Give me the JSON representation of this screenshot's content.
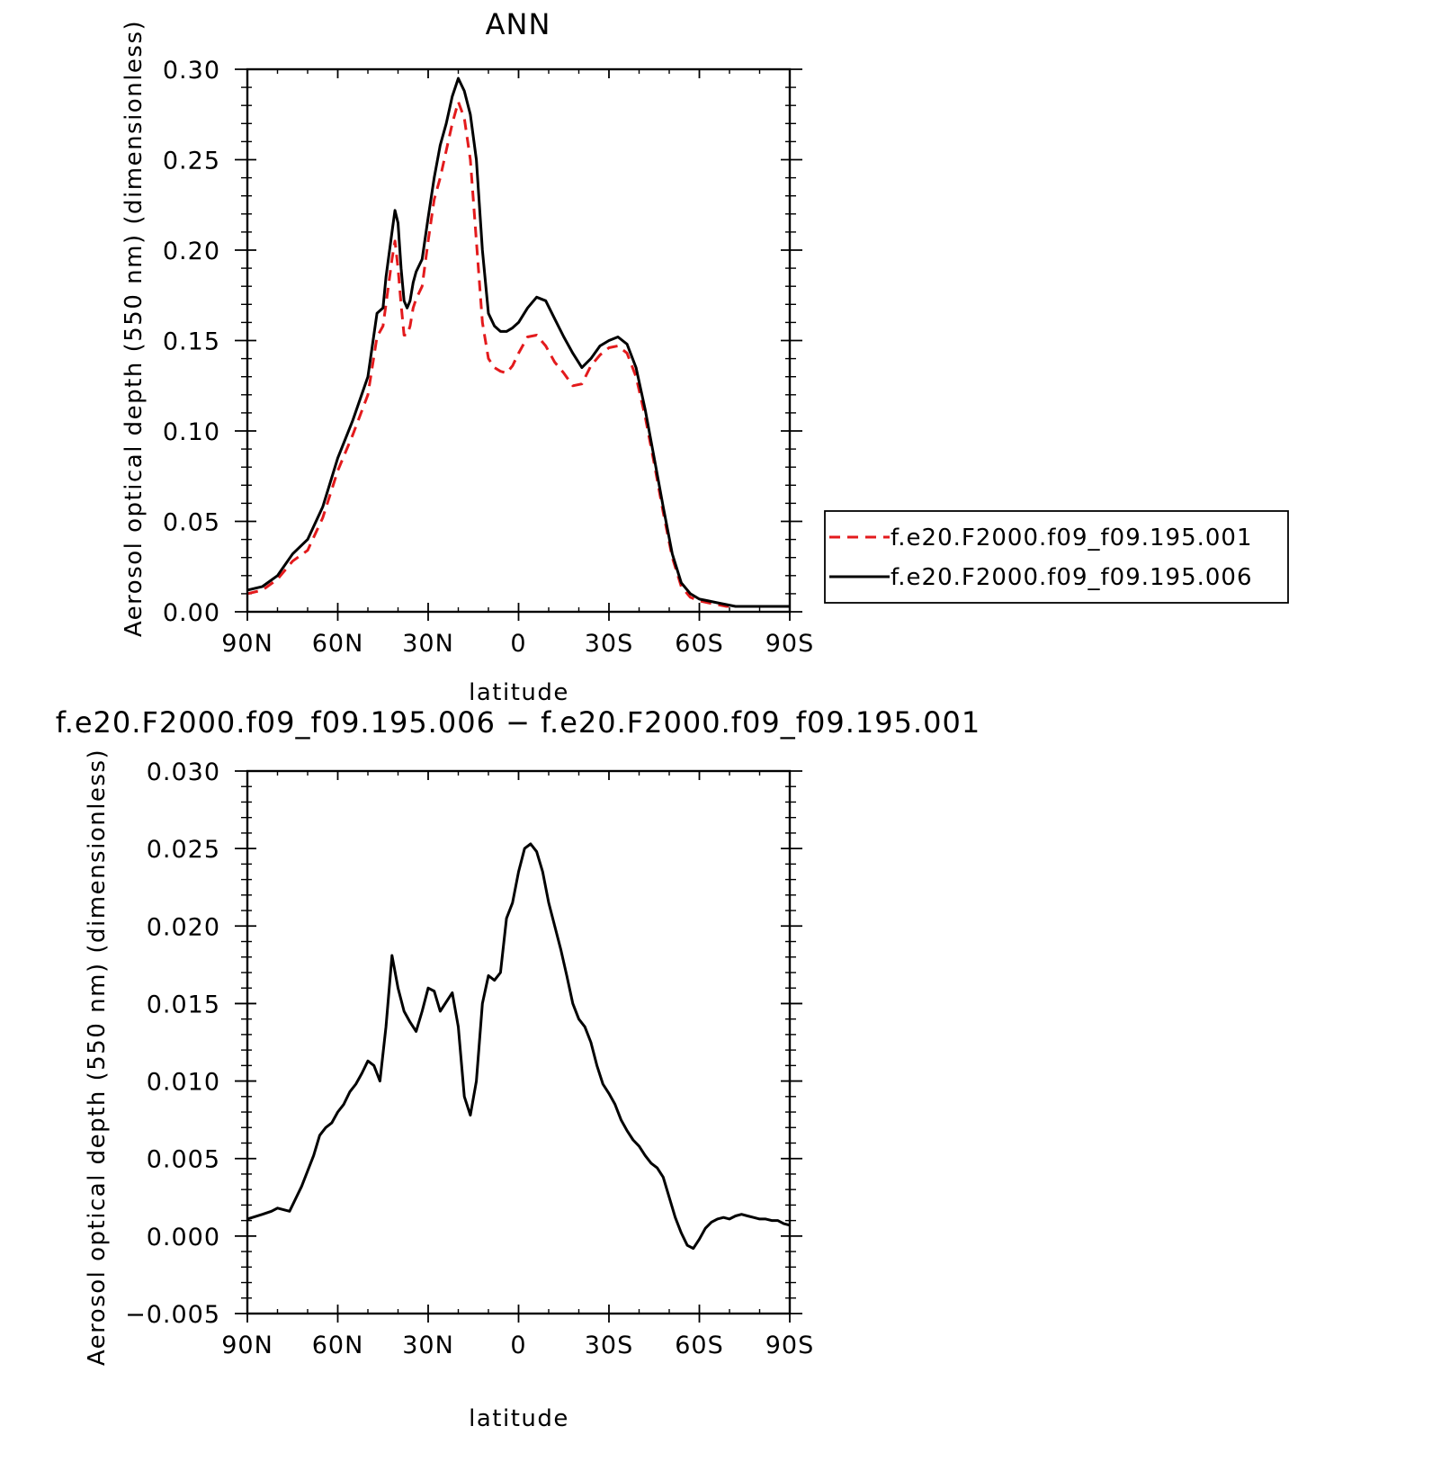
{
  "chart_data": [
    {
      "type": "line",
      "title": "ANN",
      "xlabel": "latitude",
      "ylabel": "Aerosol optical depth (550 nm) (dimensionless)",
      "xlim": [
        90,
        -90
      ],
      "ylim": [
        0,
        0.3
      ],
      "x_ticks": [
        90,
        60,
        30,
        0,
        -30,
        -60,
        -90
      ],
      "x_tick_labels": [
        "90N",
        "60N",
        "30N",
        "0",
        "30S",
        "60S",
        "90S"
      ],
      "y_ticks": [
        0,
        0.05,
        0.1,
        0.15,
        0.2,
        0.25,
        0.3
      ],
      "y_tick_labels": [
        "0.00",
        "0.05",
        "0.10",
        "0.15",
        "0.20",
        "0.25",
        "0.30"
      ],
      "legend_position": "right",
      "grid": false,
      "series": [
        {
          "name": "f.e20.F2000.f09_f09.195.001",
          "color": "#e31a1c",
          "dash": "dashed",
          "x": [
            90,
            85,
            80,
            75,
            70,
            65,
            60,
            55,
            50,
            47,
            45,
            44,
            42,
            41,
            40,
            39,
            38,
            37,
            36,
            35,
            34,
            32,
            30,
            28,
            26,
            24,
            22,
            20,
            18,
            16,
            14,
            12,
            10,
            8,
            6,
            4,
            2,
            0,
            -3,
            -6,
            -9,
            -12,
            -15,
            -18,
            -21,
            -24,
            -27,
            -30,
            -33,
            -36,
            -39,
            -42,
            -45,
            -48,
            -51,
            -54,
            -57,
            -60,
            -63,
            -66,
            -69,
            -72,
            -75,
            -78,
            -81,
            -84,
            -87,
            -90
          ],
          "values": [
            0.01,
            0.012,
            0.018,
            0.028,
            0.034,
            0.052,
            0.078,
            0.098,
            0.12,
            0.152,
            0.158,
            0.17,
            0.195,
            0.205,
            0.19,
            0.17,
            0.153,
            0.153,
            0.158,
            0.168,
            0.173,
            0.18,
            0.205,
            0.228,
            0.24,
            0.255,
            0.27,
            0.282,
            0.273,
            0.25,
            0.205,
            0.16,
            0.14,
            0.135,
            0.133,
            0.132,
            0.136,
            0.143,
            0.152,
            0.153,
            0.147,
            0.138,
            0.132,
            0.125,
            0.126,
            0.136,
            0.142,
            0.146,
            0.147,
            0.143,
            0.13,
            0.108,
            0.082,
            0.055,
            0.03,
            0.014,
            0.008,
            0.006,
            0.005,
            0.004,
            0.003,
            0.003,
            0.003,
            0.003,
            0.003,
            0.003,
            0.003,
            0.003
          ]
        },
        {
          "name": "f.e20.F2000.f09_f09.195.006",
          "color": "#000000",
          "dash": "solid",
          "x": [
            90,
            85,
            80,
            75,
            70,
            65,
            60,
            55,
            50,
            47,
            45,
            44,
            42,
            41,
            40,
            39,
            38,
            37,
            36,
            35,
            34,
            32,
            30,
            28,
            26,
            24,
            22,
            20,
            18,
            16,
            14,
            12,
            10,
            8,
            6,
            4,
            2,
            0,
            -3,
            -6,
            -9,
            -12,
            -15,
            -18,
            -21,
            -24,
            -27,
            -30,
            -33,
            -36,
            -39,
            -42,
            -45,
            -48,
            -51,
            -54,
            -57,
            -60,
            -63,
            -66,
            -69,
            -72,
            -75,
            -78,
            -81,
            -84,
            -87,
            -90
          ],
          "values": [
            0.012,
            0.014,
            0.02,
            0.032,
            0.04,
            0.058,
            0.085,
            0.106,
            0.13,
            0.165,
            0.168,
            0.185,
            0.21,
            0.222,
            0.215,
            0.19,
            0.172,
            0.168,
            0.172,
            0.182,
            0.188,
            0.195,
            0.218,
            0.24,
            0.258,
            0.27,
            0.285,
            0.295,
            0.288,
            0.275,
            0.25,
            0.2,
            0.165,
            0.158,
            0.155,
            0.155,
            0.157,
            0.16,
            0.168,
            0.174,
            0.172,
            0.162,
            0.152,
            0.143,
            0.135,
            0.14,
            0.147,
            0.15,
            0.152,
            0.148,
            0.135,
            0.112,
            0.085,
            0.058,
            0.032,
            0.016,
            0.01,
            0.007,
            0.006,
            0.005,
            0.004,
            0.003,
            0.003,
            0.003,
            0.003,
            0.003,
            0.003,
            0.003
          ]
        }
      ]
    },
    {
      "type": "line",
      "title": "f.e20.F2000.f09_f09.195.006 − f.e20.F2000.f09_f09.195.001",
      "xlabel": "latitude",
      "ylabel": "Aerosol optical depth (550 nm) (dimensionless)",
      "xlim": [
        90,
        -90
      ],
      "ylim": [
        -0.005,
        0.03
      ],
      "x_ticks": [
        90,
        60,
        30,
        0,
        -30,
        -60,
        -90
      ],
      "x_tick_labels": [
        "90N",
        "60N",
        "30N",
        "0",
        "30S",
        "60S",
        "90S"
      ],
      "y_ticks": [
        -0.005,
        0,
        0.005,
        0.01,
        0.015,
        0.02,
        0.025,
        0.03
      ],
      "y_tick_labels": [
        "−0.005",
        "0.000",
        "0.005",
        "0.010",
        "0.015",
        "0.020",
        "0.025",
        "0.030"
      ],
      "grid": false,
      "series": [
        {
          "color": "#000000",
          "dash": "solid",
          "x": [
            90,
            85,
            82,
            80,
            78,
            76,
            74,
            72,
            70,
            68,
            66,
            64,
            62,
            60,
            58,
            56,
            54,
            52,
            50,
            48,
            46,
            44,
            42,
            40,
            38,
            36,
            34,
            32,
            30,
            28,
            26,
            24,
            22,
            20,
            18,
            16,
            14,
            12,
            10,
            8,
            6,
            4,
            2,
            0,
            -2,
            -4,
            -6,
            -8,
            -10,
            -12,
            -14,
            -16,
            -18,
            -20,
            -22,
            -24,
            -26,
            -28,
            -30,
            -32,
            -34,
            -36,
            -38,
            -40,
            -42,
            -44,
            -46,
            -48,
            -50,
            -52,
            -54,
            -56,
            -58,
            -60,
            -62,
            -64,
            -66,
            -68,
            -70,
            -72,
            -74,
            -76,
            -78,
            -80,
            -82,
            -84,
            -86,
            -88,
            -90
          ],
          "values": [
            0.0011,
            0.0014,
            0.0016,
            0.0018,
            0.0017,
            0.0016,
            0.0024,
            0.0032,
            0.0042,
            0.0052,
            0.0065,
            0.007,
            0.0073,
            0.008,
            0.0085,
            0.0093,
            0.0098,
            0.0105,
            0.0113,
            0.011,
            0.01,
            0.0135,
            0.0181,
            0.016,
            0.0145,
            0.0138,
            0.0132,
            0.0145,
            0.016,
            0.0158,
            0.0145,
            0.0151,
            0.0157,
            0.0135,
            0.009,
            0.0078,
            0.01,
            0.015,
            0.0168,
            0.0165,
            0.017,
            0.0205,
            0.0215,
            0.0235,
            0.025,
            0.0253,
            0.0248,
            0.0235,
            0.0215,
            0.02,
            0.0185,
            0.0168,
            0.015,
            0.014,
            0.0135,
            0.0125,
            0.011,
            0.0098,
            0.0092,
            0.0085,
            0.0075,
            0.0068,
            0.0062,
            0.0058,
            0.0052,
            0.0047,
            0.0044,
            0.0038,
            0.0025,
            0.0012,
            0.0002,
            -0.0006,
            -0.0008,
            -0.0002,
            0.0005,
            0.0009,
            0.0011,
            0.0012,
            0.0011,
            0.0013,
            0.0014,
            0.0013,
            0.0012,
            0.0011,
            0.0011,
            0.001,
            0.001,
            0.0008,
            0.0007
          ]
        }
      ]
    }
  ]
}
